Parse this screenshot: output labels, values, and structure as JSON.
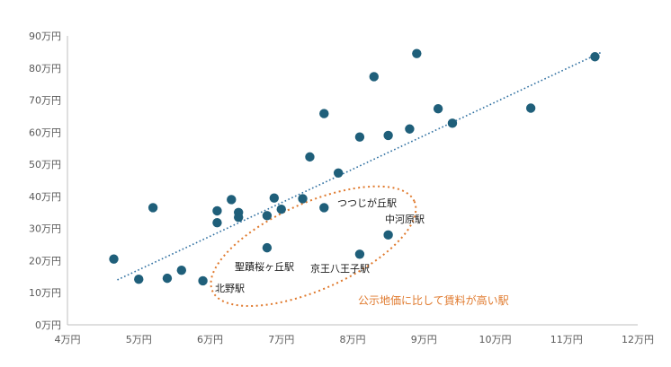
{
  "chart_data": {
    "type": "scatter",
    "title": "",
    "xlabel": "",
    "ylabel": "",
    "xlim": [
      4,
      12
    ],
    "ylim": [
      0,
      90
    ],
    "x_tick_labels": [
      "4万円",
      "5万円",
      "6万円",
      "7万円",
      "8万円",
      "9万円",
      "10万円",
      "11万円",
      "12万円"
    ],
    "y_tick_labels": [
      "0万円",
      "10万円",
      "20万円",
      "30万円",
      "40万円",
      "50万円",
      "60万円",
      "70万円",
      "80万円",
      "90万円"
    ],
    "grid": false,
    "legend": "none",
    "marker_color": "#1f5f7a",
    "trendline": {
      "style": "dotted",
      "color": "#2e6fa0",
      "from": [
        4.7,
        14
      ],
      "to": [
        11.5,
        85
      ]
    },
    "series": [
      {
        "points": [
          [
            4.65,
            20.5
          ],
          [
            5.0,
            14.2
          ],
          [
            5.2,
            36.5
          ],
          [
            5.4,
            14.5
          ],
          [
            5.6,
            17.0
          ],
          [
            5.9,
            13.7
          ],
          [
            6.1,
            35.5
          ],
          [
            6.1,
            31.8
          ],
          [
            6.3,
            39.0
          ],
          [
            6.4,
            35.0
          ],
          [
            6.4,
            33.5
          ],
          [
            6.8,
            24.0
          ],
          [
            6.8,
            34.0
          ],
          [
            6.9,
            39.5
          ],
          [
            7.0,
            36.0
          ],
          [
            7.3,
            39.3
          ],
          [
            7.4,
            52.3
          ],
          [
            7.6,
            65.8
          ],
          [
            7.6,
            36.5
          ],
          [
            7.8,
            47.3
          ],
          [
            8.1,
            58.5
          ],
          [
            8.1,
            22.0
          ],
          [
            8.3,
            77.3
          ],
          [
            8.5,
            59.0
          ],
          [
            8.5,
            28.0
          ],
          [
            8.8,
            61.0
          ],
          [
            8.9,
            84.5
          ],
          [
            9.2,
            67.3
          ],
          [
            9.4,
            62.8
          ],
          [
            10.5,
            67.5
          ],
          [
            11.4,
            83.5
          ]
        ]
      }
    ],
    "annotations": [
      {
        "text": "つつじが丘駅",
        "near": [
          7.6,
          36.5
        ]
      },
      {
        "text": "中河原駅",
        "near": [
          8.5,
          28.0
        ]
      },
      {
        "text": "京王八王子駅",
        "near": [
          8.1,
          22.0
        ]
      },
      {
        "text": "聖蹟桜ヶ丘駅",
        "near": [
          6.8,
          24.0
        ]
      },
      {
        "text": "北野駅",
        "near": [
          5.9,
          13.7
        ]
      }
    ],
    "highlight": {
      "text": "公示地価に比して賃料が高い駅",
      "color": "#e07a2e",
      "center": [
        7.45,
        24.5
      ],
      "radius": [
        1.55,
        13.5
      ],
      "rotation_deg": -24
    }
  }
}
